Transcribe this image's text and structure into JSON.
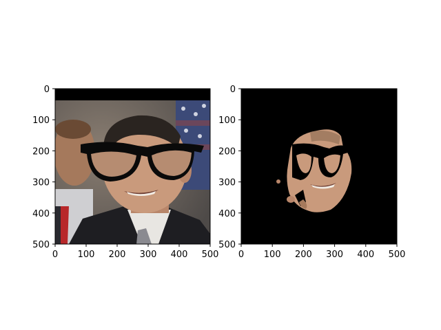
{
  "figure": {
    "panels": [
      {
        "name": "original-with-glasses",
        "image_description_tag": "photo",
        "x_ticks": [
          "0",
          "100",
          "200",
          "300",
          "400",
          "500"
        ],
        "y_ticks": [
          "0",
          "100",
          "200",
          "300",
          "400",
          "500"
        ],
        "x_range": [
          0,
          500
        ],
        "y_range": [
          0,
          500
        ]
      },
      {
        "name": "segmented-face-mask",
        "image_description_tag": "mask",
        "x_ticks": [
          "0",
          "100",
          "200",
          "300",
          "400",
          "500"
        ],
        "y_ticks": [
          "0",
          "100",
          "200",
          "300",
          "400",
          "500"
        ],
        "x_range": [
          0,
          500
        ],
        "y_range": [
          0,
          500
        ]
      }
    ],
    "colors": {
      "frame": "#000000",
      "background": "#ffffff",
      "mask_background": "#000000",
      "glasses": "#0a0a0a",
      "skin": "#c99a7c",
      "suit": "#1e1e22",
      "shirt": "#e8e6e2",
      "backdrop": "#6f6a64",
      "flag_blue": "#3c4a78",
      "flag_red": "#9a3a3a"
    }
  }
}
